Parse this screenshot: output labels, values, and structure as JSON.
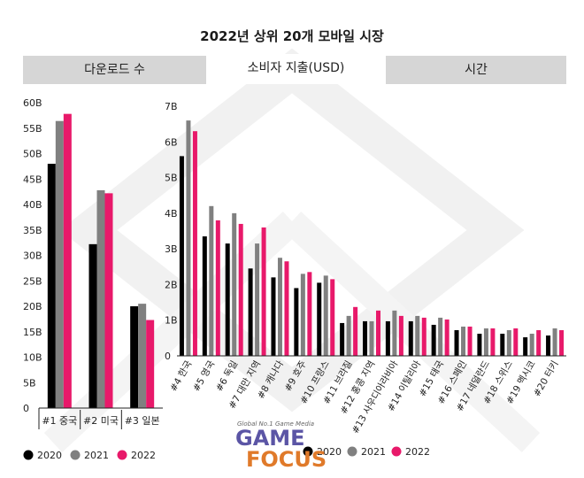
{
  "title": "2022년 상위 20개 모바일 시장",
  "tabs": [
    {
      "label": "다운로드 수",
      "active": false
    },
    {
      "label": "소비자 지출(USD)",
      "active": true
    },
    {
      "label": "시간",
      "active": false
    }
  ],
  "brand": {
    "tagline": "Global No.1 Game Media",
    "word1": "GAME",
    "word2": "FOCUS"
  },
  "colors": {
    "2020": "#000000",
    "2021": "#808080",
    "2022": "#e8196a"
  },
  "chart_data": [
    {
      "type": "bar",
      "title": "",
      "categories": [
        "#1 중국",
        "#2 미국",
        "#3 일본"
      ],
      "series": [
        {
          "name": "2020",
          "values": [
            48,
            32.2,
            20
          ]
        },
        {
          "name": "2021",
          "values": [
            56.4,
            42.8,
            20.5
          ]
        },
        {
          "name": "2022",
          "values": [
            57.8,
            42.2,
            17.3
          ]
        }
      ],
      "yticks": [
        "0",
        "5B",
        "10B",
        "15B",
        "20B",
        "25B",
        "30B",
        "35B",
        "40B",
        "45B",
        "50B",
        "55B",
        "60B"
      ],
      "ylim": [
        0,
        60
      ],
      "legend": "bottom",
      "grid": false
    },
    {
      "type": "bar",
      "title": "",
      "categories": [
        "#4 한국",
        "#5 영국",
        "#6 독일",
        "#7 대만 지역",
        "#8 캐나다",
        "#9 호주",
        "#10 프랑스",
        "#11 브라질",
        "#12 홍콩 지역",
        "#13 사우디아라비아",
        "#14 이탈리아",
        "#15 태국",
        "#16 스페인",
        "#17 네덜란드",
        "#18 스위스",
        "#19 멕시코",
        "#20 터키"
      ],
      "series": [
        {
          "name": "2020",
          "values": [
            5.6,
            3.35,
            3.15,
            2.45,
            2.2,
            1.9,
            2.05,
            0.92,
            0.97,
            0.97,
            0.97,
            0.87,
            0.72,
            0.62,
            0.62,
            0.52,
            0.57
          ]
        },
        {
          "name": "2021",
          "values": [
            6.6,
            4.2,
            4.0,
            3.15,
            2.75,
            2.3,
            2.25,
            1.12,
            0.97,
            1.27,
            1.12,
            1.07,
            0.82,
            0.77,
            0.72,
            0.62,
            0.77
          ]
        },
        {
          "name": "2022",
          "values": [
            6.3,
            3.8,
            3.7,
            3.6,
            2.65,
            2.35,
            2.15,
            1.37,
            1.27,
            1.12,
            1.07,
            1.02,
            0.82,
            0.77,
            0.77,
            0.72,
            0.72
          ]
        }
      ],
      "yticks": [
        "0",
        "1B",
        "2B",
        "3B",
        "4B",
        "5B",
        "6B",
        "7B"
      ],
      "ylim": [
        0,
        7
      ],
      "legend": "bottom",
      "grid": false
    }
  ]
}
